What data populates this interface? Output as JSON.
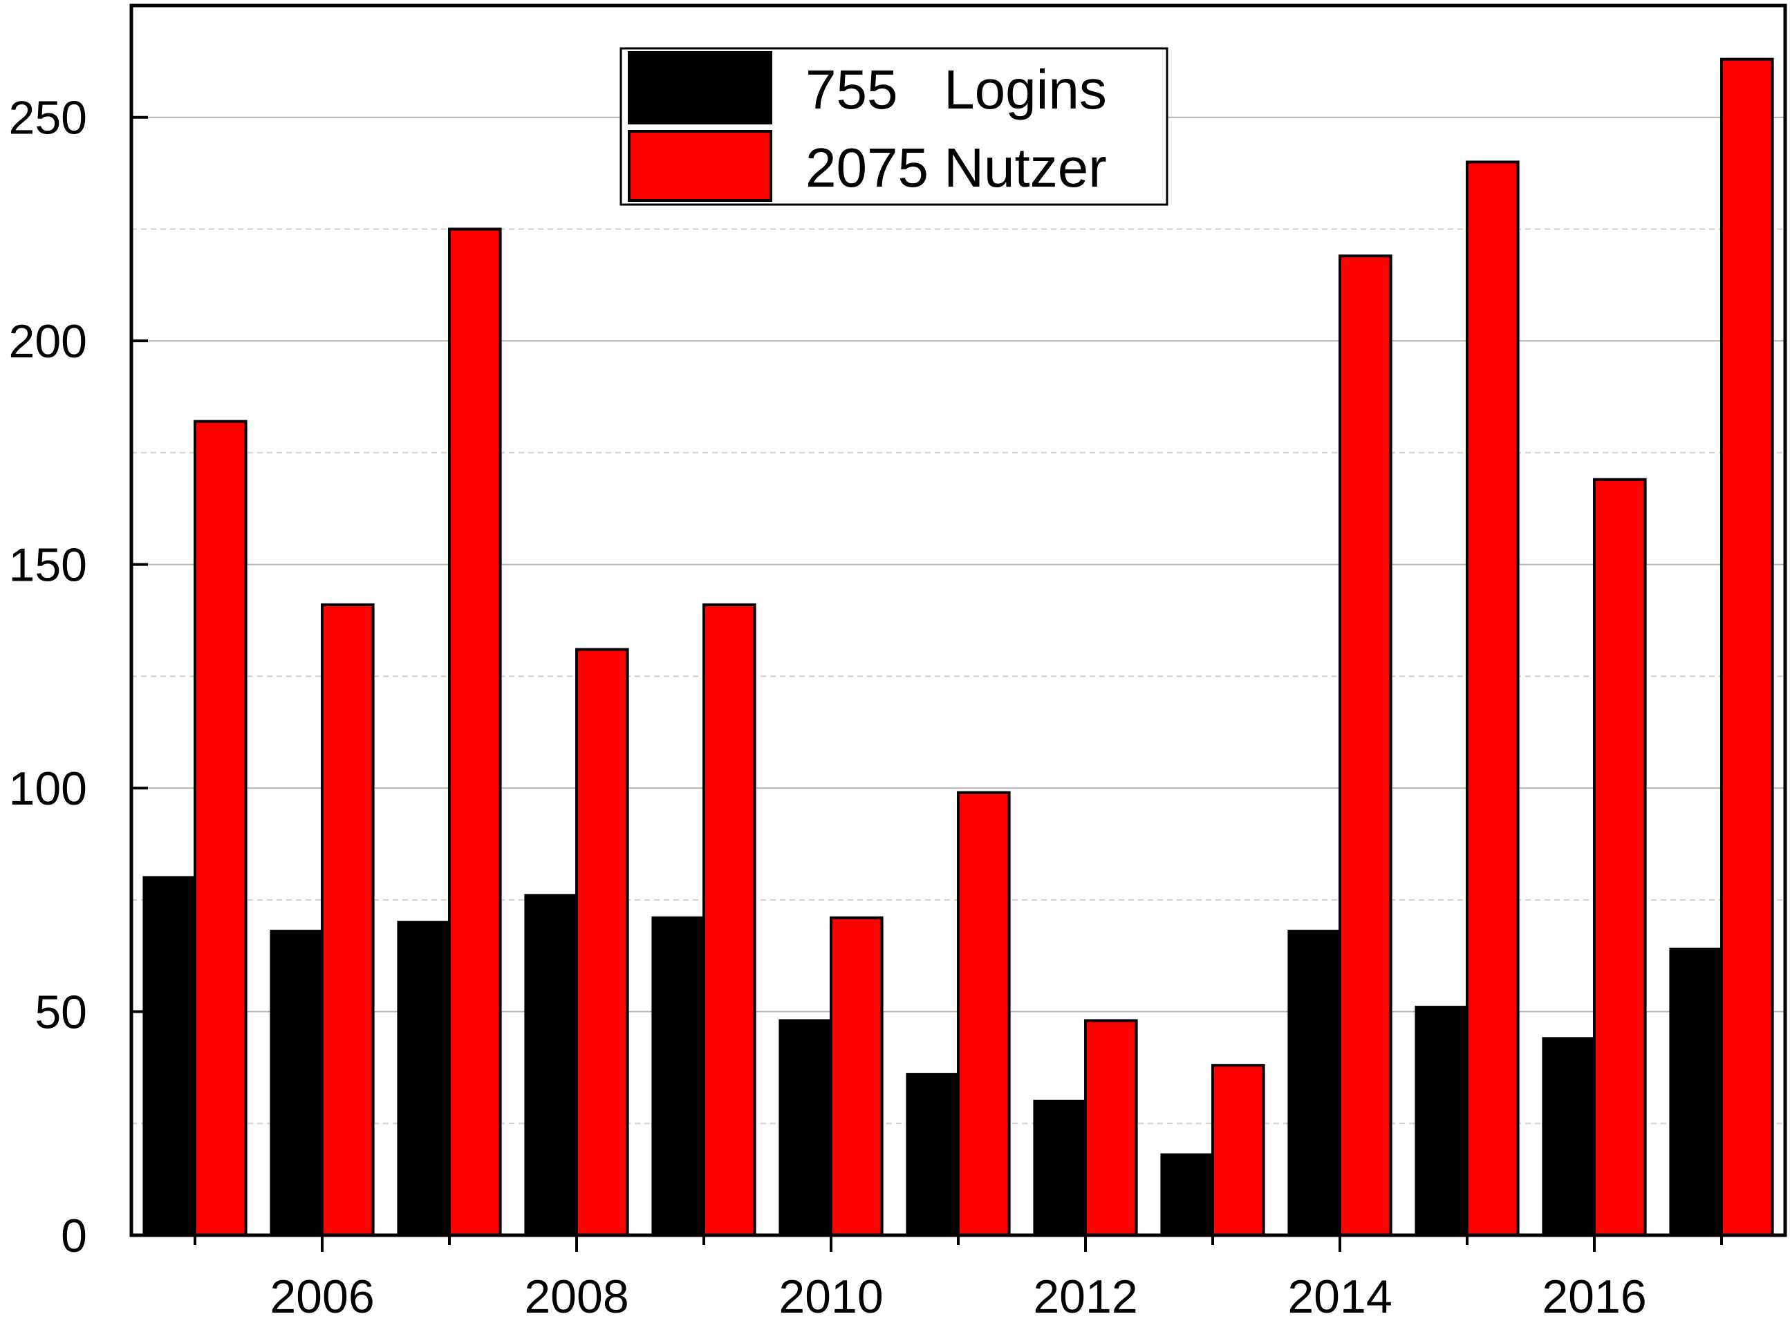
{
  "chart_data": {
    "type": "bar",
    "title": "",
    "xlabel": "",
    "ylabel": "",
    "x": [
      2005,
      2006,
      2007,
      2008,
      2009,
      2010,
      2011,
      2012,
      2013,
      2014,
      2015,
      2016,
      2017
    ],
    "xticks": [
      2006,
      2008,
      2010,
      2012,
      2014,
      2016
    ],
    "xtick_labels": [
      "2006",
      "2008",
      "2010",
      "2012",
      "2014",
      "2016"
    ],
    "ylim": [
      0,
      275
    ],
    "yticks": [
      0,
      50,
      100,
      150,
      200,
      250
    ],
    "ytick_labels": [
      "0",
      "50",
      "100",
      "150",
      "200",
      "250"
    ],
    "grid": "horizontal (solid at major ticks, dashed at minor ticks)",
    "legend_position": "top-center",
    "series": [
      {
        "name": "755   Logins",
        "color": "#000000",
        "values": [
          80,
          68,
          70,
          76,
          71,
          48,
          36,
          30,
          18,
          68,
          51,
          44,
          64
        ]
      },
      {
        "name": "2075 Nutzer",
        "color": "#ff0000",
        "values": [
          182,
          141,
          225,
          131,
          141,
          71,
          99,
          48,
          38,
          219,
          240,
          169,
          263
        ]
      }
    ]
  }
}
